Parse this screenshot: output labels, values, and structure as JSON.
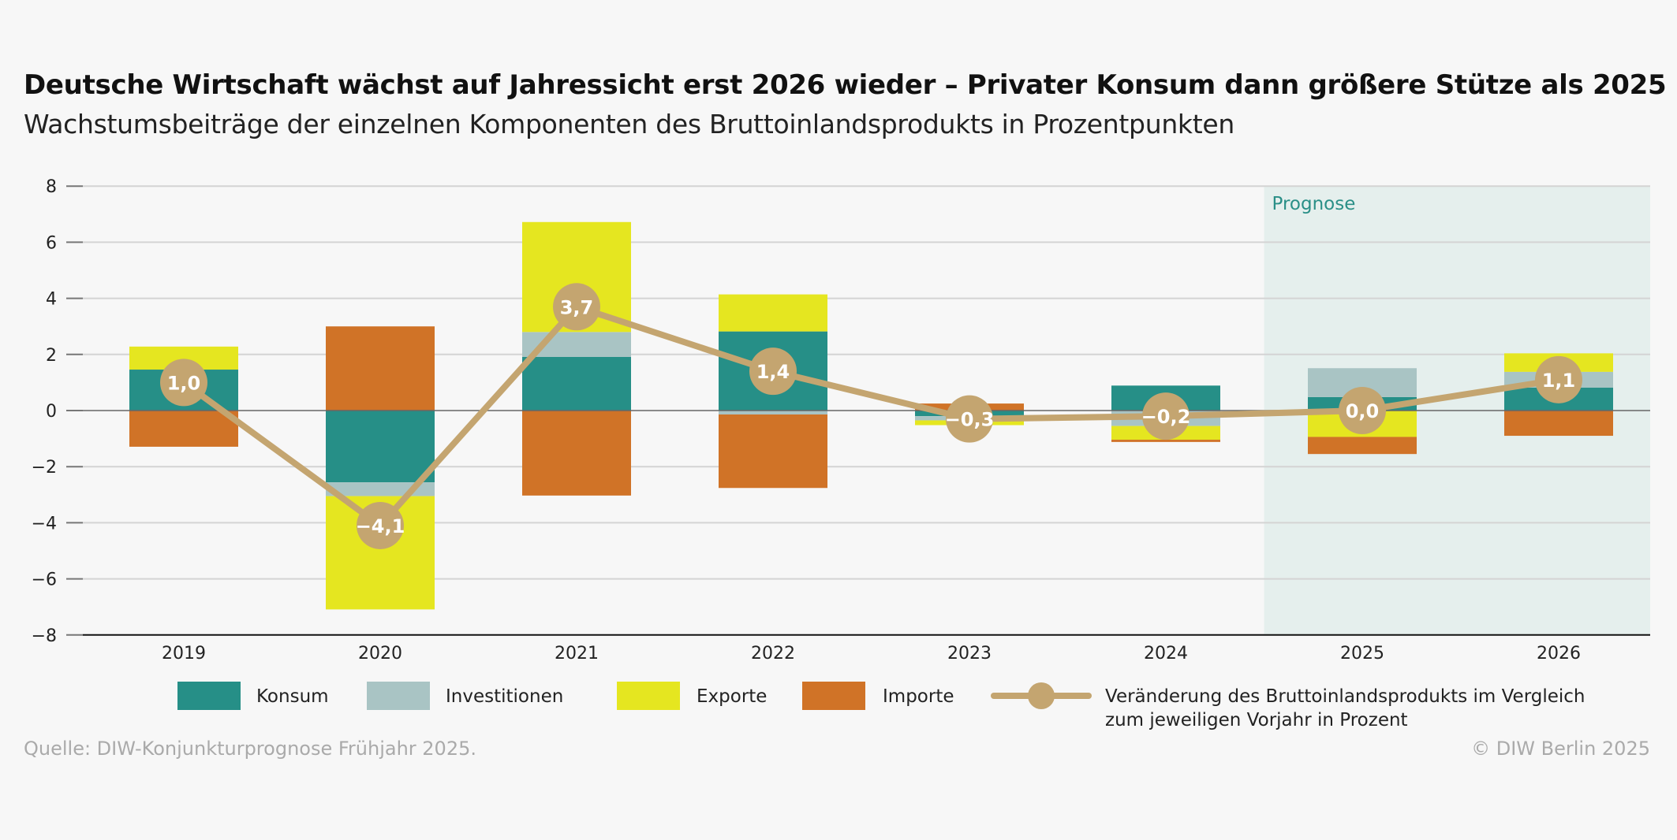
{
  "title": "Deutsche Wirtschaft wächst auf Jahressicht erst 2026 wieder – Privater Konsum dann größere Stütze als 2025",
  "subtitle": "Wachstumsbeiträge der einzelnen Komponenten des Bruttoinlandsprodukts in Prozentpunkten",
  "source": "Quelle: DIW-Konjunkturprognose Frühjahr 2025.",
  "copyright": "© DIW Berlin 2025",
  "chart_data": {
    "type": "bar",
    "stacked": true,
    "categories": [
      "2019",
      "2020",
      "2021",
      "2022",
      "2023",
      "2024",
      "2025",
      "2026"
    ],
    "ylim": [
      -8,
      8
    ],
    "yticks": [
      8,
      6,
      4,
      2,
      0,
      -2,
      -4,
      -6,
      -8
    ],
    "ytick_labels": [
      "8",
      "6",
      "4",
      "2",
      "0",
      "−2",
      "−4",
      "−6",
      "−8"
    ],
    "grid": true,
    "legend_position": "bottom",
    "forecast_region": {
      "label": "Prognose",
      "from": "2025",
      "to": "2026",
      "color": "#e5efed"
    },
    "series": [
      {
        "name": "Konsum",
        "color": "#268f87",
        "values": [
          1.46,
          -2.56,
          1.91,
          2.82,
          -0.2,
          0.89,
          0.48,
          0.82
        ]
      },
      {
        "name": "Investitionen",
        "color": "#a9c4c4",
        "values": [
          0.0,
          -0.49,
          0.89,
          -0.14,
          -0.15,
          -0.55,
          1.03,
          0.56
        ]
      },
      {
        "name": "Exporte",
        "color": "#e5e620",
        "values": [
          0.82,
          -4.04,
          3.92,
          1.32,
          -0.17,
          -0.49,
          -0.94,
          0.66
        ]
      },
      {
        "name": "Importe",
        "color": "#d07327",
        "values": [
          -1.29,
          3.0,
          -3.03,
          -2.62,
          0.25,
          -0.08,
          -0.61,
          -0.9
        ]
      }
    ],
    "line": {
      "name": "Veränderung des Bruttoinlandsprodukts im Vergleich zum jeweiligen Vorjahr in Prozent",
      "name_lines": [
        "Veränderung des Bruttoinlandsprodukts im Vergleich",
        "zum jeweiligen Vorjahr in Prozent"
      ],
      "color": "#c4a570",
      "values": [
        1.0,
        -4.1,
        3.7,
        1.4,
        -0.3,
        -0.2,
        0.0,
        1.1
      ],
      "labels": [
        "1,0",
        "−4,1",
        "3,7",
        "1,4",
        "−0,3",
        "−0,2",
        "0,0",
        "1,1"
      ]
    }
  }
}
